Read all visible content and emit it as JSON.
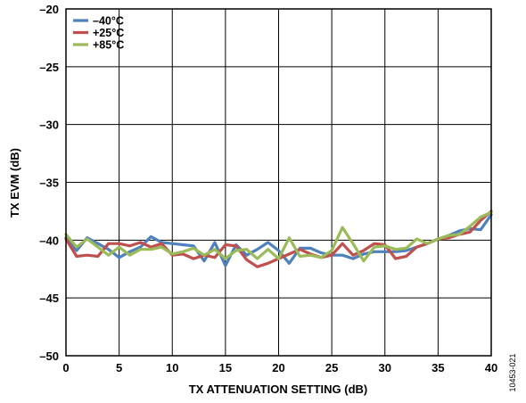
{
  "chart_data": {
    "type": "line",
    "title": "",
    "xlabel": "TX ATTENUATION SETTING (dB)",
    "ylabel": "TX EVM (dB)",
    "xlim": [
      0,
      40
    ],
    "ylim": [
      -50,
      -20
    ],
    "xticks": [
      0,
      5,
      10,
      15,
      20,
      25,
      30,
      35,
      40
    ],
    "yticks": [
      -50,
      -45,
      -40,
      -35,
      -30,
      -25,
      -20
    ],
    "ytick_labels": [
      "–50",
      "–45",
      "–40",
      "–35",
      "–30",
      "–25",
      "–20"
    ],
    "grid": true,
    "legend_position": "top-left",
    "figure_id": "10453-021",
    "x": [
      0,
      1,
      2,
      3,
      4,
      5,
      6,
      7,
      8,
      9,
      10,
      11,
      12,
      13,
      14,
      15,
      16,
      17,
      18,
      19,
      20,
      21,
      22,
      23,
      24,
      25,
      26,
      27,
      28,
      29,
      30,
      31,
      32,
      33,
      34,
      35,
      36,
      37,
      38,
      39,
      40
    ],
    "series": [
      {
        "name": "–40°C",
        "color": "#4f81bd",
        "values": [
          -39.8,
          -40.9,
          -39.8,
          -40.3,
          -40.8,
          -41.5,
          -41.0,
          -40.6,
          -39.7,
          -40.2,
          -40.3,
          -40.4,
          -40.5,
          -41.8,
          -40.2,
          -42.2,
          -40.4,
          -41.3,
          -40.8,
          -40.2,
          -40.9,
          -42.0,
          -40.7,
          -40.7,
          -41.1,
          -41.3,
          -41.3,
          -41.6,
          -41.2,
          -41.0,
          -41.0,
          -41.0,
          -40.9,
          -40.6,
          -40.3,
          -39.9,
          -39.6,
          -39.2,
          -39.0,
          -39.1,
          -37.8
        ]
      },
      {
        "name": "+25°C",
        "color": "#c0504d",
        "values": [
          -39.9,
          -41.4,
          -41.3,
          -41.4,
          -40.3,
          -40.3,
          -40.5,
          -40.2,
          -40.6,
          -40.3,
          -41.3,
          -41.2,
          -41.6,
          -41.3,
          -41.5,
          -40.4,
          -40.5,
          -41.7,
          -42.3,
          -42.0,
          -41.6,
          -41.2,
          -40.8,
          -41.2,
          -41.5,
          -41.3,
          -40.3,
          -41.3,
          -40.9,
          -40.3,
          -40.4,
          -41.6,
          -41.4,
          -40.6,
          -40.3,
          -39.9,
          -39.8,
          -39.5,
          -39.3,
          -38.3,
          -37.5
        ]
      },
      {
        "name": "+85°C",
        "color": "#9bbb59",
        "values": [
          -39.5,
          -40.6,
          -39.9,
          -40.6,
          -41.3,
          -40.6,
          -41.3,
          -40.8,
          -40.8,
          -40.6,
          -41.2,
          -41.0,
          -40.7,
          -41.3,
          -40.8,
          -41.6,
          -40.9,
          -40.8,
          -41.6,
          -40.8,
          -41.6,
          -39.8,
          -41.4,
          -41.3,
          -41.5,
          -40.9,
          -38.9,
          -40.3,
          -41.8,
          -40.6,
          -40.5,
          -40.8,
          -40.7,
          -39.9,
          -40.3,
          -39.9,
          -39.6,
          -39.5,
          -38.8,
          -38.0,
          -37.6
        ]
      }
    ]
  }
}
